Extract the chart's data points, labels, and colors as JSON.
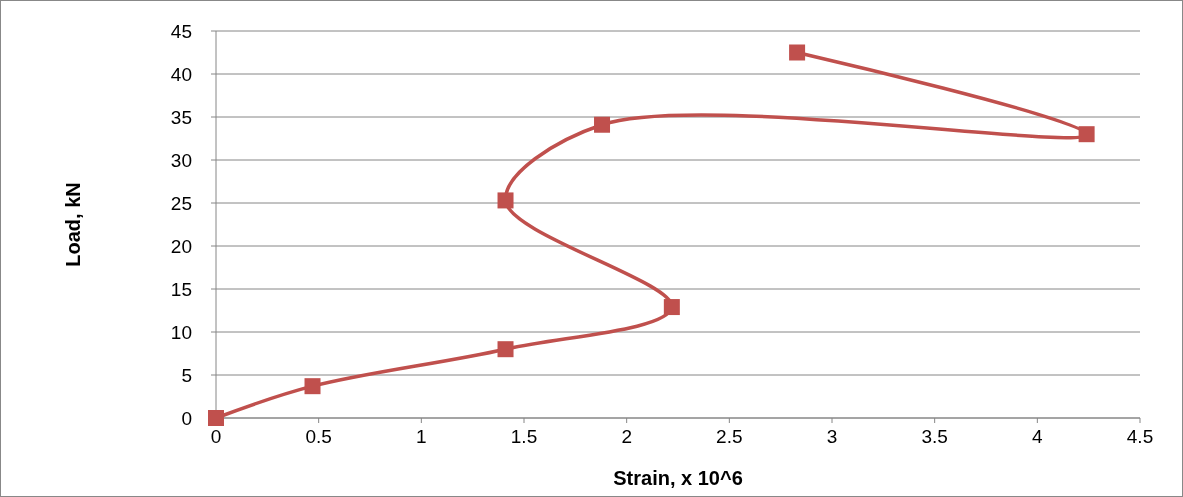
{
  "chart_data": {
    "type": "line",
    "xlabel": "Strain, x 10^6",
    "ylabel": "Load, kN",
    "xlim": [
      0,
      4.5
    ],
    "xticks": [
      0,
      0.5,
      1,
      1.5,
      2,
      2.5,
      3,
      3.5,
      4,
      4.5
    ],
    "ylim": [
      0,
      45
    ],
    "yticks": [
      0,
      5,
      10,
      15,
      20,
      25,
      30,
      35,
      40,
      45
    ],
    "grid": "y",
    "marker": "square",
    "line_style": "solid",
    "series": [
      {
        "color": "#c0504d",
        "x": [
          0,
          0.47,
          1.41,
          2.22,
          1.41,
          1.88,
          4.24,
          2.83
        ],
        "values": [
          0,
          3.7,
          8,
          12.9,
          25.3,
          34.1,
          33,
          42.5
        ]
      }
    ]
  }
}
